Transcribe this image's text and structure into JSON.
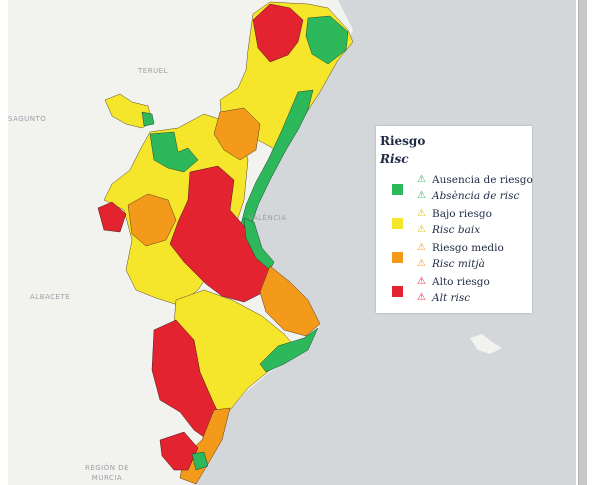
{
  "map": {
    "place_labels": [
      "Teruel",
      "Sagunto",
      "València",
      "Albacete",
      "Región de Murcia"
    ],
    "colors": {
      "sea": "#d4d7da",
      "land": "#f2f2ef",
      "none": "#2eb85c",
      "low": "#f5e52b",
      "medium": "#f39a1b",
      "high": "#e3232f"
    }
  },
  "legend": {
    "title_es": "Riesgo",
    "title_ca": "Risc",
    "items": [
      {
        "label_es": "Ausencia de riesgo",
        "label_ca": "Absència de risc",
        "color": "#2eb85c",
        "icon": "warning-icon"
      },
      {
        "label_es": "Bajo riesgo",
        "label_ca": "Risc baix",
        "color": "#f5e52b",
        "icon": "warning-icon"
      },
      {
        "label_es": "Riesgo medio",
        "label_ca": "Risc mitjà",
        "color": "#f39a1b",
        "icon": "warning-icon"
      },
      {
        "label_es": "Alto riesgo",
        "label_ca": "Alt risc",
        "color": "#e3232f",
        "icon": "warning-icon"
      }
    ]
  }
}
